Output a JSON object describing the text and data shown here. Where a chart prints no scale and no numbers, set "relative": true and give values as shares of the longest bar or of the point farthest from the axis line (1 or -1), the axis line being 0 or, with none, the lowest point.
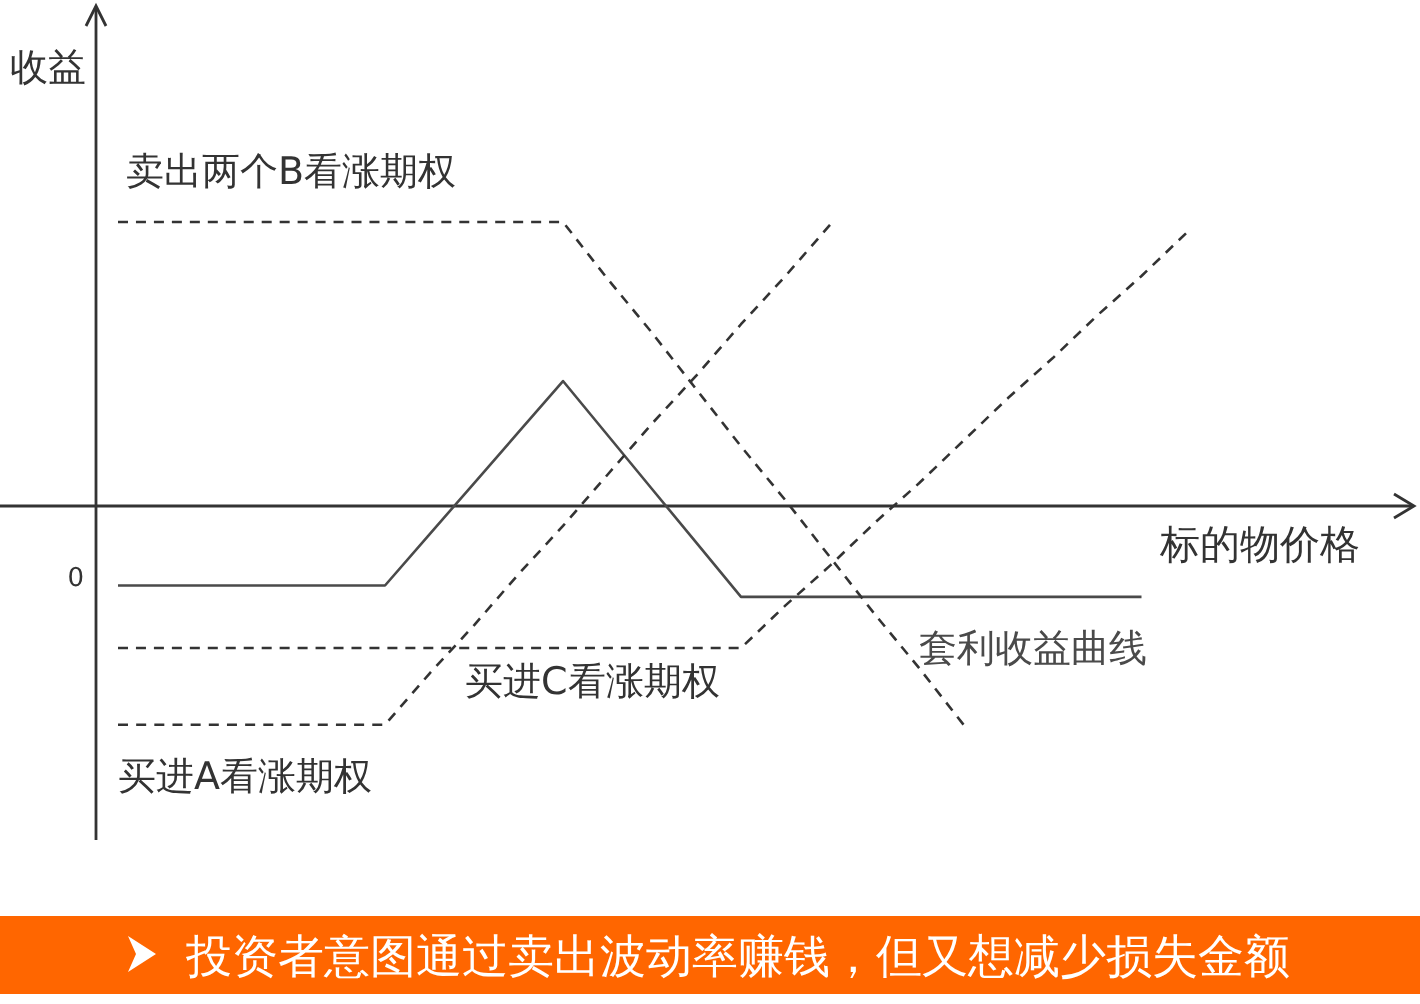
{
  "chart_data": {
    "type": "line",
    "relative": true,
    "xlabel": "标的物价格",
    "ylabel": "收益",
    "categories": [
      null,
      null,
      null,
      null,
      null,
      null,
      null,
      null,
      null,
      null,
      null,
      null,
      null,
      null,
      null,
      null,
      null,
      null,
      null,
      null,
      null,
      null,
      null,
      null,
      null
    ],
    "series": [
      {
        "name": "套利收益曲线",
        "color": "#4a4a4a",
        "line_style": "solid",
        "values": [
          -0.28,
          -0.28,
          -0.28,
          -0.28,
          -0.28,
          -0.28,
          -0.28,
          -0.1,
          0.08,
          0.26,
          0.44,
          0.25,
          0.06,
          -0.13,
          -0.32,
          -0.32,
          -0.32,
          -0.32,
          -0.32,
          -0.32,
          -0.32,
          -0.32,
          -0.32,
          -0.32,
          null
        ]
      },
      {
        "name": "卖出两个B看涨期权",
        "color": "#333333",
        "line_style": "dashed",
        "values": [
          1.0,
          1.0,
          1.0,
          1.0,
          1.0,
          1.0,
          1.0,
          1.0,
          1.0,
          1.0,
          1.0,
          0.8,
          0.61,
          0.41,
          0.21,
          0.02,
          -0.18,
          -0.38,
          -0.57,
          -0.77,
          null,
          null,
          null,
          null,
          null
        ]
      },
      {
        "name": "买进A看涨期权",
        "color": "#333333",
        "line_style": "dashed",
        "values": [
          -0.77,
          -0.77,
          -0.77,
          -0.77,
          -0.77,
          -0.77,
          -0.77,
          -0.59,
          -0.42,
          -0.24,
          -0.07,
          0.11,
          0.29,
          0.46,
          0.64,
          0.81,
          0.99,
          null,
          null,
          null,
          null,
          null,
          null,
          null,
          null
        ]
      },
      {
        "name": "买进C看涨期权",
        "color": "#333333",
        "line_style": "dashed",
        "values": [
          -0.5,
          -0.5,
          -0.5,
          -0.5,
          -0.5,
          -0.5,
          -0.5,
          -0.5,
          -0.5,
          -0.5,
          -0.5,
          -0.5,
          -0.5,
          -0.5,
          -0.5,
          -0.35,
          -0.21,
          -0.06,
          0.08,
          0.23,
          0.38,
          0.52,
          0.67,
          0.81,
          0.96
        ]
      }
    ],
    "annotations": [
      "投资者意图通过卖出波动率赚钱，但又想减少损失金额",
      "0"
    ]
  }
}
